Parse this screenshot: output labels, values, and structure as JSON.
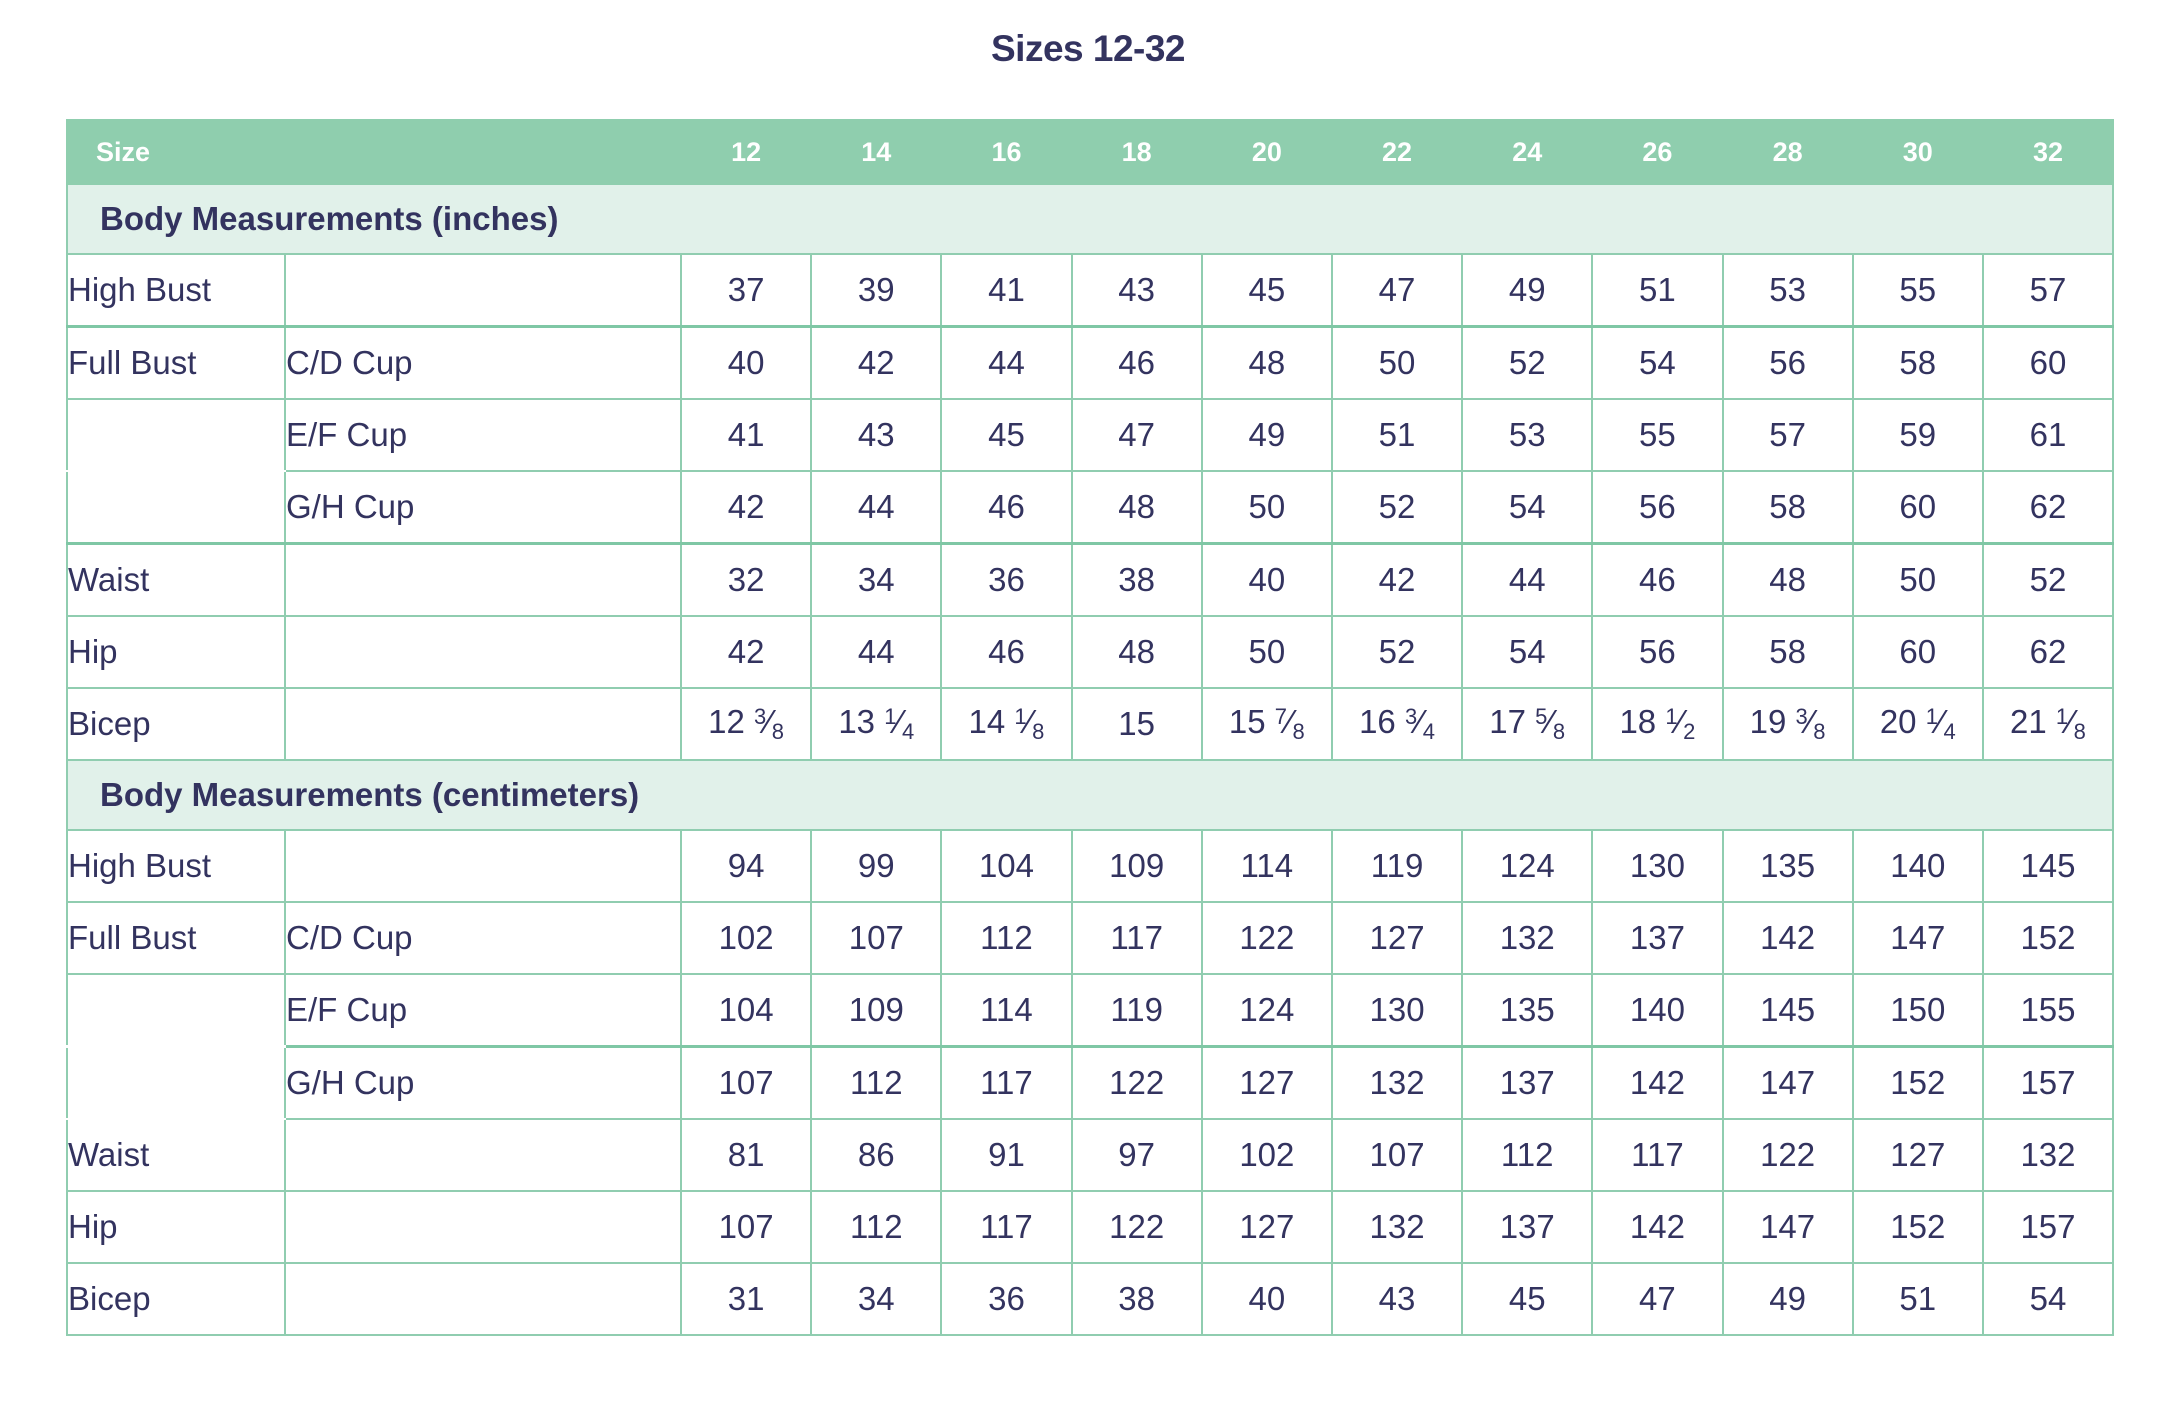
{
  "title": "Sizes 12-32",
  "header": {
    "size_label": "Size",
    "sizes": [
      "12",
      "14",
      "16",
      "18",
      "20",
      "22",
      "24",
      "26",
      "28",
      "30",
      "32"
    ]
  },
  "colors": {
    "header_bg": "#8fceae",
    "section_bg": "#e1f1ea",
    "border": "#90cdb0",
    "text": "#33335f"
  },
  "sections": [
    {
      "title": "Body Measurements (inches)",
      "rows": [
        {
          "label": "High Bust",
          "sub": "",
          "values": [
            "37",
            "39",
            "41",
            "43",
            "45",
            "47",
            "49",
            "51",
            "53",
            "55",
            "57"
          ]
        },
        {
          "label": "Full Bust",
          "sub": "C/D Cup",
          "values": [
            "40",
            "42",
            "44",
            "46",
            "48",
            "50",
            "52",
            "54",
            "56",
            "58",
            "60"
          ]
        },
        {
          "label": "",
          "sub": "E/F Cup",
          "values": [
            "41",
            "43",
            "45",
            "47",
            "49",
            "51",
            "53",
            "55",
            "57",
            "59",
            "61"
          ]
        },
        {
          "label": "",
          "sub": "G/H Cup",
          "values": [
            "42",
            "44",
            "46",
            "48",
            "50",
            "52",
            "54",
            "56",
            "58",
            "60",
            "62"
          ]
        },
        {
          "label": "Waist",
          "sub": "",
          "values": [
            "32",
            "34",
            "36",
            "38",
            "40",
            "42",
            "44",
            "46",
            "48",
            "50",
            "52"
          ]
        },
        {
          "label": "Hip",
          "sub": "",
          "values": [
            "42",
            "44",
            "46",
            "48",
            "50",
            "52",
            "54",
            "56",
            "58",
            "60",
            "62"
          ]
        },
        {
          "label": "Bicep",
          "sub": "",
          "values": [
            "12 3⁄8",
            "13 1⁄4",
            "14 1⁄8",
            "15",
            "15 7⁄8",
            "16 3⁄4",
            "17 5⁄8",
            "18 1⁄2",
            "19 3⁄8",
            "20 1⁄4",
            "21 1⁄8"
          ]
        }
      ]
    },
    {
      "title": "Body Measurements (centimeters)",
      "rows": [
        {
          "label": "High Bust",
          "sub": "",
          "values": [
            "94",
            "99",
            "104",
            "109",
            "114",
            "119",
            "124",
            "130",
            "135",
            "140",
            "145"
          ]
        },
        {
          "label": "Full Bust",
          "sub": "C/D Cup",
          "values": [
            "102",
            "107",
            "112",
            "117",
            "122",
            "127",
            "132",
            "137",
            "142",
            "147",
            "152"
          ]
        },
        {
          "label": "",
          "sub": "E/F Cup",
          "values": [
            "104",
            "109",
            "114",
            "119",
            "124",
            "130",
            "135",
            "140",
            "145",
            "150",
            "155"
          ]
        },
        {
          "label": "",
          "sub": "G/H Cup",
          "values": [
            "107",
            "112",
            "117",
            "122",
            "127",
            "132",
            "137",
            "142",
            "147",
            "152",
            "157"
          ]
        },
        {
          "label": "Waist",
          "sub": "",
          "values": [
            "81",
            "86",
            "91",
            "97",
            "102",
            "107",
            "112",
            "117",
            "122",
            "127",
            "132"
          ]
        },
        {
          "label": "Hip",
          "sub": "",
          "values": [
            "107",
            "112",
            "117",
            "122",
            "127",
            "132",
            "137",
            "142",
            "147",
            "152",
            "157"
          ]
        },
        {
          "label": "Bicep",
          "sub": "",
          "values": [
            "31",
            "34",
            "36",
            "38",
            "40",
            "43",
            "45",
            "47",
            "49",
            "51",
            "54"
          ]
        }
      ]
    }
  ]
}
